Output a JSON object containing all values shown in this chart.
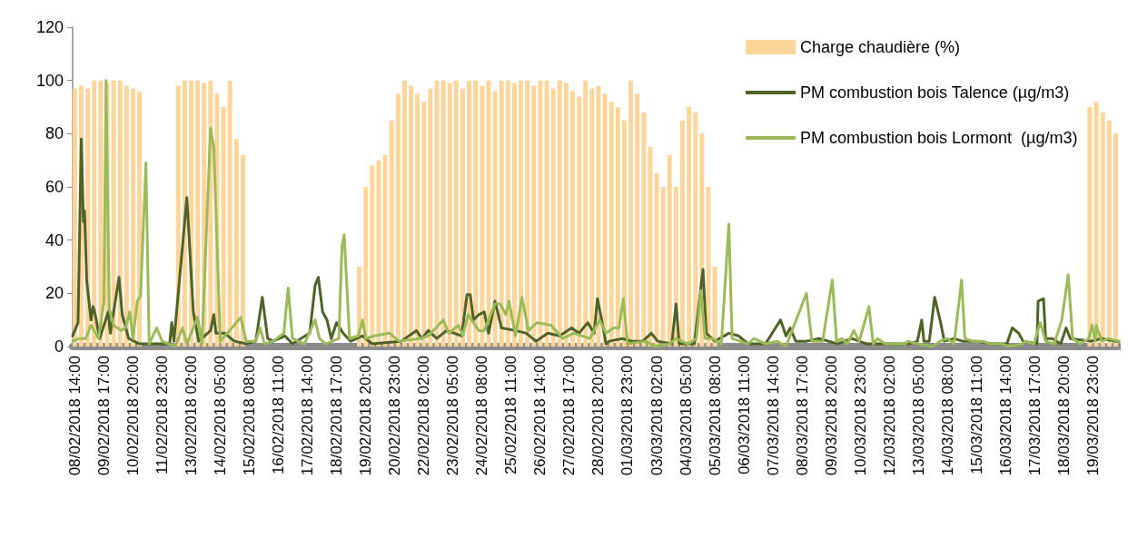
{
  "chart_data": {
    "type": "line",
    "xlim": [
      "2018-02-08T12:00",
      "2018-03-20T23:00"
    ],
    "ylim": [
      0,
      120
    ],
    "yticks": [
      0,
      20,
      40,
      60,
      80,
      100,
      120
    ],
    "xticks": [
      {
        "value": "2018-02-08T14:00",
        "label": "08/02/2018 14:00"
      },
      {
        "value": "2018-02-09T17:00",
        "label": "09/02/2018 17:00"
      },
      {
        "value": "2018-02-10T20:00",
        "label": "10/02/2018 20:00"
      },
      {
        "value": "2018-02-11T23:00",
        "label": "11/02/2018 23:00"
      },
      {
        "value": "2018-02-13T02:00",
        "label": "13/02/2018 02:00"
      },
      {
        "value": "2018-02-14T05:00",
        "label": "14/02/2018 05:00"
      },
      {
        "value": "2018-02-15T08:00",
        "label": "15/02/2018 08:00"
      },
      {
        "value": "2018-02-16T11:00",
        "label": "16/02/2018 11:00"
      },
      {
        "value": "2018-02-17T14:00",
        "label": "17/02/2018 14:00"
      },
      {
        "value": "2018-02-18T17:00",
        "label": "18/02/2018 17:00"
      },
      {
        "value": "2018-02-19T20:00",
        "label": "19/02/2018 20:00"
      },
      {
        "value": "2018-02-20T23:00",
        "label": "20/02/2018 23:00"
      },
      {
        "value": "2018-02-22T02:00",
        "label": "22/02/2018 02:00"
      },
      {
        "value": "2018-02-23T05:00",
        "label": "23/02/2018 05:00"
      },
      {
        "value": "2018-02-24T08:00",
        "label": "24/02/2018 08:00"
      },
      {
        "value": "2018-02-25T11:00",
        "label": "25/02/2018 11:00"
      },
      {
        "value": "2018-02-26T14:00",
        "label": "26/02/2018 14:00"
      },
      {
        "value": "2018-02-27T17:00",
        "label": "27/02/2018 17:00"
      },
      {
        "value": "2018-02-28T20:00",
        "label": "28/02/2018 20:00"
      },
      {
        "value": "2018-03-01T23:00",
        "label": "01/03/2018 23:00"
      },
      {
        "value": "2018-03-03T02:00",
        "label": "03/03/2018 02:00"
      },
      {
        "value": "2018-03-04T05:00",
        "label": "04/03/2018 05:00"
      },
      {
        "value": "2018-03-05T08:00",
        "label": "05/03/2018 08:00"
      },
      {
        "value": "2018-03-06T11:00",
        "label": "06/03/2018 11:00"
      },
      {
        "value": "2018-03-07T14:00",
        "label": "07/03/2018 14:00"
      },
      {
        "value": "2018-03-08T17:00",
        "label": "08/03/2018 17:00"
      },
      {
        "value": "2018-03-09T20:00",
        "label": "09/03/2018 20:00"
      },
      {
        "value": "2018-03-10T23:00",
        "label": "10/03/2018 23:00"
      },
      {
        "value": "2018-03-12T02:00",
        "label": "12/03/2018 02:00"
      },
      {
        "value": "2018-03-13T05:00",
        "label": "13/03/2018 05:00"
      },
      {
        "value": "2018-03-14T08:00",
        "label": "14/03/2018 08:00"
      },
      {
        "value": "2018-03-15T11:00",
        "label": "15/03/2018 11:00"
      },
      {
        "value": "2018-03-16T14:00",
        "label": "16/03/2018 14:00"
      },
      {
        "value": "2018-03-17T17:00",
        "label": "17/03/2018 17:00"
      },
      {
        "value": "2018-03-18T20:00",
        "label": "18/03/2018 20:00"
      },
      {
        "value": "2018-03-19T23:00",
        "label": "19/03/2018 23:00"
      }
    ],
    "legend": "top right",
    "marker": "none",
    "grid": false,
    "series": [
      {
        "name": "Charge chaudière (%)",
        "type": "bar",
        "color": "#fcd59b",
        "x": [
          "2018-02-08T14:00",
          "2018-02-08T20:00",
          "2018-02-09T02:00",
          "2018-02-09T08:00",
          "2018-02-09T14:00",
          "2018-02-09T20:00",
          "2018-02-10T02:00",
          "2018-02-10T08:00",
          "2018-02-10T14:00",
          "2018-02-10T20:00",
          "2018-02-11T02:00",
          "2018-02-12T14:00",
          "2018-02-12T20:00",
          "2018-02-13T02:00",
          "2018-02-13T08:00",
          "2018-02-13T14:00",
          "2018-02-13T20:00",
          "2018-02-14T02:00",
          "2018-02-14T08:00",
          "2018-02-14T14:00",
          "2018-02-14T20:00",
          "2018-02-15T02:00",
          "2018-02-19T14:00",
          "2018-02-19T20:00",
          "2018-02-20T02:00",
          "2018-02-20T08:00",
          "2018-02-20T14:00",
          "2018-02-20T20:00",
          "2018-02-21T02:00",
          "2018-02-21T08:00",
          "2018-02-21T14:00",
          "2018-02-21T20:00",
          "2018-02-22T02:00",
          "2018-02-22T08:00",
          "2018-02-22T14:00",
          "2018-02-22T20:00",
          "2018-02-23T02:00",
          "2018-02-23T08:00",
          "2018-02-23T14:00",
          "2018-02-23T20:00",
          "2018-02-24T02:00",
          "2018-02-24T08:00",
          "2018-02-24T14:00",
          "2018-02-24T20:00",
          "2018-02-25T02:00",
          "2018-02-25T08:00",
          "2018-02-25T14:00",
          "2018-02-25T20:00",
          "2018-02-26T02:00",
          "2018-02-26T08:00",
          "2018-02-26T14:00",
          "2018-02-26T20:00",
          "2018-02-27T02:00",
          "2018-02-27T08:00",
          "2018-02-27T14:00",
          "2018-02-27T20:00",
          "2018-02-28T02:00",
          "2018-02-28T08:00",
          "2018-02-28T14:00",
          "2018-02-28T20:00",
          "2018-03-01T02:00",
          "2018-03-01T08:00",
          "2018-03-01T14:00",
          "2018-03-01T20:00",
          "2018-03-02T02:00",
          "2018-03-02T08:00",
          "2018-03-02T14:00",
          "2018-03-02T20:00",
          "2018-03-03T02:00",
          "2018-03-03T08:00",
          "2018-03-03T14:00",
          "2018-03-03T20:00",
          "2018-03-04T02:00",
          "2018-03-04T08:00",
          "2018-03-04T14:00",
          "2018-03-04T20:00",
          "2018-03-05T02:00",
          "2018-03-05T08:00",
          "2018-03-19T20:00",
          "2018-03-20T02:00",
          "2018-03-20T08:00",
          "2018-03-20T14:00",
          "2018-03-20T20:00"
        ],
        "values": [
          97,
          98,
          97,
          100,
          100,
          99,
          100,
          100,
          98,
          97,
          96,
          98,
          100,
          100,
          100,
          99,
          100,
          95,
          90,
          100,
          78,
          72,
          30,
          60,
          68,
          70,
          72,
          85,
          95,
          100,
          98,
          95,
          92,
          97,
          100,
          100,
          99,
          100,
          97,
          100,
          100,
          98,
          100,
          96,
          100,
          100,
          99,
          100,
          100,
          98,
          100,
          100,
          97,
          100,
          99,
          96,
          94,
          100,
          97,
          98,
          95,
          92,
          90,
          85,
          100,
          95,
          88,
          75,
          65,
          60,
          72,
          60,
          85,
          90,
          88,
          80,
          60,
          30,
          90,
          92,
          88,
          85,
          80
        ]
      },
      {
        "name": "PM combustion bois Talence (µg/m3)",
        "color": "#4f6228",
        "x": [
          "2018-02-08T12:00",
          "2018-02-08T17:00",
          "2018-02-08T20:00",
          "2018-02-08T22:00",
          "2018-02-08T23:00",
          "2018-02-09T01:00",
          "2018-02-09T05:00",
          "2018-02-09T07:00",
          "2018-02-09T09:00",
          "2018-02-09T13:00",
          "2018-02-09T21:00",
          "2018-02-09T23:00",
          "2018-02-10T07:00",
          "2018-02-10T10:00",
          "2018-02-10T16:00",
          "2018-02-11T02:00",
          "2018-02-12T06:00",
          "2018-02-12T08:00",
          "2018-02-12T10:00",
          "2018-02-12T22:00",
          "2018-02-13T04:00",
          "2018-02-13T09:00",
          "2018-02-13T20:00",
          "2018-02-13T23:00",
          "2018-02-14T01:00",
          "2018-02-14T09:00",
          "2018-02-14T18:00",
          "2018-02-15T05:00",
          "2018-02-15T14:00",
          "2018-02-15T20:00",
          "2018-02-16T01:00",
          "2018-02-16T06:00",
          "2018-02-16T17:00",
          "2018-02-17T00:00",
          "2018-02-17T16:00",
          "2018-02-17T21:00",
          "2018-02-18T00:00",
          "2018-02-18T04:00",
          "2018-02-18T08:00",
          "2018-02-18T12:00",
          "2018-02-18T17:00",
          "2018-02-18T23:00",
          "2018-02-19T06:00",
          "2018-02-19T17:00",
          "2018-02-20T02:00",
          "2018-02-21T05:00",
          "2018-02-21T19:00",
          "2018-02-22T00:00",
          "2018-02-22T06:00",
          "2018-02-22T14:00",
          "2018-02-22T23:00",
          "2018-02-23T13:00",
          "2018-02-23T18:00",
          "2018-02-23T21:00",
          "2018-02-24T00:00",
          "2018-02-24T05:00",
          "2018-02-24T10:00",
          "2018-02-24T14:00",
          "2018-02-24T20:00",
          "2018-02-25T02:00",
          "2018-02-25T15:00",
          "2018-02-26T01:00",
          "2018-02-26T10:00",
          "2018-02-26T21:00",
          "2018-02-27T08:00",
          "2018-02-27T19:00",
          "2018-02-28T02:00",
          "2018-02-28T10:00",
          "2018-02-28T16:00",
          "2018-02-28T19:00",
          "2018-02-28T23:00",
          "2018-03-01T03:00",
          "2018-03-01T06:00",
          "2018-03-01T18:00",
          "2018-03-02T03:00",
          "2018-03-02T13:00",
          "2018-03-02T21:00",
          "2018-03-03T03:00",
          "2018-03-03T16:00",
          "2018-03-03T20:00",
          "2018-03-03T23:00",
          "2018-03-04T13:00",
          "2018-03-04T21:00",
          "2018-03-05T00:00",
          "2018-03-05T08:00",
          "2018-03-05T21:00",
          "2018-03-06T06:00",
          "2018-03-06T15:00",
          "2018-03-07T07:00",
          "2018-03-07T21:00",
          "2018-03-08T02:00",
          "2018-03-08T06:00",
          "2018-03-08T11:00",
          "2018-03-08T21:00",
          "2018-03-09T09:00",
          "2018-03-10T02:00",
          "2018-03-10T15:00",
          "2018-03-11T05:00",
          "2018-03-11T22:00",
          "2018-03-12T20:00",
          "2018-03-13T04:00",
          "2018-03-13T08:00",
          "2018-03-13T10:00",
          "2018-03-13T15:00",
          "2018-03-13T20:00",
          "2018-03-14T01:00",
          "2018-03-14T05:00",
          "2018-03-14T14:00",
          "2018-03-14T22:00",
          "2018-03-15T11:00",
          "2018-03-16T01:00",
          "2018-03-16T15:00",
          "2018-03-16T20:00",
          "2018-03-17T02:00",
          "2018-03-17T06:00",
          "2018-03-17T19:00",
          "2018-03-17T20:00",
          "2018-03-18T01:00",
          "2018-03-18T03:00",
          "2018-03-18T09:00",
          "2018-03-18T17:00",
          "2018-03-18T22:00",
          "2018-03-19T02:00",
          "2018-03-19T21:00",
          "2018-03-20T07:00",
          "2018-03-20T19:00",
          "2018-03-20T23:00"
        ],
        "values": [
          4,
          9,
          78,
          47,
          51,
          25,
          10,
          15,
          12,
          3,
          13,
          5,
          26,
          12,
          3,
          1,
          1,
          9,
          2,
          56,
          13,
          2,
          6,
          12,
          5,
          5,
          2,
          1,
          2,
          18.5,
          3,
          2,
          4,
          1,
          5,
          23,
          26,
          13,
          10,
          3,
          9,
          5,
          2,
          4,
          1,
          2,
          6,
          3,
          6,
          3,
          6,
          4,
          19.5,
          19.5,
          10,
          12,
          13,
          5,
          17,
          7,
          6,
          5,
          2,
          5,
          4,
          7,
          5,
          9,
          5,
          18,
          10,
          1,
          2,
          3,
          2,
          2,
          5,
          2,
          1,
          16,
          1,
          1,
          29,
          5,
          2,
          5,
          4,
          1,
          1,
          10,
          4,
          7,
          2,
          2,
          3,
          1,
          3,
          1,
          1,
          1,
          2,
          10,
          2,
          2,
          18.5,
          10,
          2,
          3,
          2,
          2,
          1,
          1,
          7,
          5,
          2,
          1,
          17,
          18,
          3,
          3,
          1,
          7,
          3,
          2,
          3,
          2,
          2
        ]
      },
      {
        "name": "PM combustion bois Lormont  (µg/m3)",
        "color": "#9bbb59",
        "x": [
          "2018-02-08T12:00",
          "2018-02-08T18:00",
          "2018-02-09T00:00",
          "2018-02-09T05:00",
          "2018-02-09T12:00",
          "2018-02-09T17:00",
          "2018-02-09T19:00",
          "2018-02-09T22:00",
          "2018-02-10T02:00",
          "2018-02-10T09:00",
          "2018-02-10T13:00",
          "2018-02-10T17:00",
          "2018-02-10T20:00",
          "2018-02-11T00:00",
          "2018-02-11T03:00",
          "2018-02-11T08:00",
          "2018-02-11T11:00",
          "2018-02-11T18:00",
          "2018-02-11T23:00",
          "2018-02-12T11:00",
          "2018-02-12T18:00",
          "2018-02-12T22:00",
          "2018-02-13T08:00",
          "2018-02-13T12:00",
          "2018-02-13T20:00",
          "2018-02-13T23:00",
          "2018-02-14T05:00",
          "2018-02-14T18:00",
          "2018-02-15T00:00",
          "2018-02-15T05:00",
          "2018-02-15T14:00",
          "2018-02-15T18:00",
          "2018-02-15T22:00",
          "2018-02-16T06:00",
          "2018-02-16T16:00",
          "2018-02-16T20:00",
          "2018-02-17T00:00",
          "2018-02-17T11:00",
          "2018-02-17T21:00",
          "2018-02-18T01:00",
          "2018-02-18T07:00",
          "2018-02-18T19:00",
          "2018-02-18T22:00",
          "2018-02-19T00:00",
          "2018-02-19T05:00",
          "2018-02-19T13:00",
          "2018-02-19T17:00",
          "2018-02-19T20:00",
          "2018-02-20T04:00",
          "2018-02-20T18:00",
          "2018-02-21T03:00",
          "2018-02-21T22:00",
          "2018-02-22T06:00",
          "2018-02-22T20:00",
          "2018-02-23T01:00",
          "2018-02-23T10:00",
          "2018-02-23T14:00",
          "2018-02-23T19:00",
          "2018-02-24T05:00",
          "2018-02-24T10:00",
          "2018-02-24T20:00",
          "2018-02-25T01:00",
          "2018-02-25T06:00",
          "2018-02-25T09:00",
          "2018-02-25T15:00",
          "2018-02-25T21:00",
          "2018-02-26T03:00",
          "2018-02-26T11:00",
          "2018-02-27T00:00",
          "2018-02-27T11:00",
          "2018-02-27T21:00",
          "2018-02-28T12:00",
          "2018-02-28T21:00",
          "2018-03-01T03:00",
          "2018-03-01T10:00",
          "2018-03-01T15:00",
          "2018-03-01T19:00",
          "2018-03-01T23:00",
          "2018-03-02T16:00",
          "2018-03-03T00:00",
          "2018-03-03T14:00",
          "2018-03-03T20:00",
          "2018-03-04T07:00",
          "2018-03-04T15:00",
          "2018-03-04T19:00",
          "2018-03-04T23:00",
          "2018-03-05T06:00",
          "2018-03-05T14:00",
          "2018-03-05T21:00",
          "2018-03-06T00:00",
          "2018-03-06T15:00",
          "2018-03-06T20:00",
          "2018-03-07T07:00",
          "2018-03-07T18:00",
          "2018-03-08T02:00",
          "2018-03-08T21:00",
          "2018-03-09T02:00",
          "2018-03-09T12:00",
          "2018-03-09T21:00",
          "2018-03-10T01:00",
          "2018-03-10T06:00",
          "2018-03-10T11:00",
          "2018-03-10T17:00",
          "2018-03-10T22:00",
          "2018-03-11T07:00",
          "2018-03-11T11:00",
          "2018-03-11T15:00",
          "2018-03-11T22:00",
          "2018-03-12T17:00",
          "2018-03-12T19:00",
          "2018-03-13T04:00",
          "2018-03-13T18:00",
          "2018-03-14T01:00",
          "2018-03-14T08:00",
          "2018-03-14T14:00",
          "2018-03-14T21:00",
          "2018-03-15T00:00",
          "2018-03-15T07:00",
          "2018-03-15T17:00",
          "2018-03-15T23:00",
          "2018-03-16T04:00",
          "2018-03-16T10:00",
          "2018-03-16T18:00",
          "2018-03-17T05:00",
          "2018-03-17T08:00",
          "2018-03-17T16:00",
          "2018-03-17T22:00",
          "2018-03-18T03:00",
          "2018-03-18T11:00",
          "2018-03-18T18:00",
          "2018-03-19T00:00",
          "2018-03-19T04:00",
          "2018-03-19T11:00",
          "2018-03-19T19:00",
          "2018-03-19T22:00",
          "2018-03-20T01:00",
          "2018-03-20T02:00",
          "2018-03-20T07:00",
          "2018-03-20T13:00",
          "2018-03-20T23:00"
        ],
        "values": [
          2,
          3,
          3,
          8,
          3,
          17,
          100,
          14,
          8,
          6,
          7,
          13,
          3,
          17,
          19,
          69,
          1,
          7,
          2,
          0,
          7,
          1,
          11,
          1,
          82,
          75,
          2,
          8,
          11,
          2,
          2,
          7,
          1,
          2,
          5,
          22,
          3,
          1,
          10,
          3,
          1,
          3,
          38,
          42,
          3,
          4,
          10,
          3,
          4,
          5,
          2,
          3,
          4,
          10,
          5,
          8,
          4,
          12,
          6,
          6,
          16,
          16,
          12,
          17,
          4,
          18.5,
          6,
          9,
          8,
          3,
          5,
          3,
          10,
          5,
          7,
          7,
          18,
          1,
          2,
          0,
          1,
          3,
          1,
          3,
          21,
          3,
          3,
          1,
          46,
          3,
          1,
          3,
          1,
          2,
          0,
          20,
          2,
          2,
          25,
          2,
          3,
          1,
          6,
          2,
          15,
          1,
          3,
          1,
          1,
          2,
          1,
          0,
          2,
          3,
          1,
          25,
          3,
          2,
          2,
          1,
          1,
          1,
          0,
          1,
          2,
          1,
          9,
          2,
          1,
          10,
          27,
          3,
          1,
          3,
          8,
          2,
          8,
          2,
          3,
          2
        ]
      }
    ]
  }
}
